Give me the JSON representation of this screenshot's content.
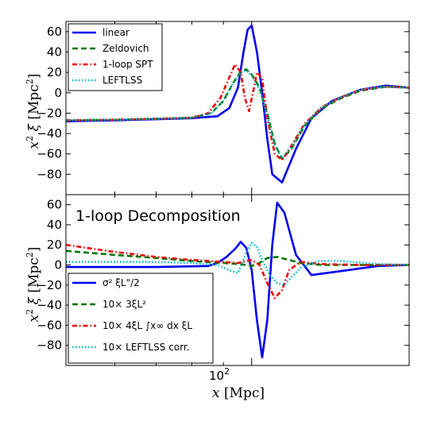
{
  "chart_data": [
    {
      "type": "line",
      "panel": "top",
      "title": "",
      "xlabel": "",
      "ylabel": "x² ξ [Mpc²]",
      "xscale": "log",
      "xlim": [
        50,
        180
      ],
      "ylim": [
        -100,
        70
      ],
      "yticks": [
        60,
        40,
        20,
        0,
        -20,
        -40,
        -60,
        -80
      ],
      "legend_position": "top-left",
      "series": [
        {
          "name": "linear",
          "color": "#0000ee",
          "style": "solid",
          "x": [
            50,
            60,
            70,
            80,
            88,
            92,
            95,
            97,
            98.5,
            100,
            102,
            104,
            106,
            108,
            112,
            118,
            125,
            135,
            150,
            165,
            180
          ],
          "y": [
            -28,
            -27,
            -26,
            -25,
            -23,
            -15,
            5,
            40,
            62,
            66,
            40,
            0,
            -45,
            -80,
            -88,
            -55,
            -25,
            -8,
            3,
            7,
            5
          ]
        },
        {
          "name": "Zeldovich",
          "color": "#007700",
          "style": "dashed",
          "x": [
            50,
            60,
            70,
            80,
            86,
            90,
            93,
            96,
            98,
            100,
            103,
            106,
            109,
            112,
            116,
            122,
            130,
            140,
            150,
            165,
            180
          ],
          "y": [
            -27,
            -26.5,
            -25.5,
            -24.5,
            -20,
            -8,
            8,
            21,
            23,
            18,
            5,
            -20,
            -50,
            -65,
            -55,
            -32,
            -15,
            -5,
            2,
            6,
            5
          ]
        },
        {
          "name": "1-loop SPT",
          "color": "#ee0000",
          "style": "dotdash",
          "x": [
            50,
            60,
            70,
            80,
            85,
            89,
            92,
            94,
            96,
            97.5,
            99,
            100.5,
            102,
            104,
            106,
            109,
            112,
            116,
            122,
            130,
            140,
            150,
            165,
            180
          ],
          "y": [
            -27,
            -26.5,
            -25.5,
            -24.5,
            -20,
            -5,
            15,
            28,
            20,
            -5,
            -18,
            0,
            20,
            14,
            -25,
            -60,
            -66,
            -52,
            -30,
            -14,
            -4,
            3,
            6,
            5
          ]
        },
        {
          "name": "LEFTLSS",
          "color": "#00b8cc",
          "style": "dotted",
          "x": [
            50,
            60,
            70,
            80,
            86,
            90,
            93,
            96,
            98,
            100,
            103,
            106,
            109,
            112,
            116,
            122,
            130,
            140,
            150,
            165,
            180
          ],
          "y": [
            -27,
            -26.5,
            -25.5,
            -24.5,
            -20,
            -8,
            8,
            20,
            22,
            17,
            3,
            -22,
            -52,
            -64,
            -54,
            -31,
            -14,
            -4,
            3,
            6,
            5
          ]
        }
      ]
    },
    {
      "type": "line",
      "panel": "bottom",
      "title": "",
      "annotation": "1-loop Decomposition",
      "xlabel": "x [Mpc]",
      "ylabel": "x² ξ [Mpc²]",
      "xscale": "log",
      "xlim": [
        50,
        180
      ],
      "ylim": [
        -100,
        70
      ],
      "yticks": [
        60,
        40,
        20,
        0,
        -20,
        -40,
        -60,
        -80
      ],
      "xticks": [
        100
      ],
      "xtick_labels": [
        "10²"
      ],
      "legend_position": "bottom-left",
      "series": [
        {
          "name": "σ² ξL\"/2",
          "color": "#0000ee",
          "style": "solid",
          "x": [
            50,
            70,
            85,
            88,
            91,
            94,
            96,
            98,
            100,
            102,
            104,
            106,
            108,
            110,
            113,
            118,
            125,
            140,
            160,
            180
          ],
          "y": [
            -2,
            -2,
            -1,
            2,
            8,
            16,
            23,
            17,
            -5,
            -55,
            -92,
            -55,
            20,
            62,
            52,
            10,
            -10,
            -6,
            -1,
            0
          ]
        },
        {
          "name": "10× 3ξL²",
          "color": "#007700",
          "style": "dashed",
          "x": [
            50,
            60,
            70,
            80,
            90,
            95,
            98,
            100,
            103,
            106,
            110,
            115,
            120,
            130,
            150,
            180
          ],
          "y": [
            14,
            10,
            7,
            4,
            2,
            1,
            0,
            -1,
            2,
            7,
            8,
            5,
            2,
            0,
            0,
            0
          ]
        },
        {
          "name": "10× 4ξL ∫x∞ dx ξL",
          "color": "#ee0000",
          "style": "dotdash",
          "x": [
            50,
            60,
            70,
            80,
            90,
            95,
            98,
            100,
            103,
            106,
            109,
            112,
            115,
            120,
            130,
            150,
            180
          ],
          "y": [
            20,
            13,
            8,
            5,
            3,
            2,
            4,
            5,
            0,
            -18,
            -33,
            -25,
            -5,
            3,
            1,
            0,
            0
          ]
        },
        {
          "name": "10× LEFTLSS corr.",
          "color": "#00b8cc",
          "style": "dotted",
          "x": [
            50,
            60,
            70,
            80,
            88,
            92,
            95,
            98,
            100,
            102,
            104,
            107,
            110,
            113,
            116,
            120,
            128,
            140,
            160,
            180
          ],
          "y": [
            3,
            3,
            3,
            2,
            0,
            -5,
            -8,
            12,
            22,
            18,
            5,
            -10,
            -18,
            -20,
            -12,
            -3,
            4,
            4,
            1,
            0
          ]
        }
      ]
    }
  ],
  "ticks": {
    "y": [
      "60",
      "40",
      "20",
      "0",
      "−20",
      "−40",
      "−60",
      "−80"
    ],
    "x_major": "10",
    "x_major_exp": "2"
  },
  "labels": {
    "ylabel_top": "x² ξ  [Mpc²]",
    "ylabel_bottom": "x² ξ  [Mpc²]",
    "xlabel": "x   [Mpc]"
  }
}
